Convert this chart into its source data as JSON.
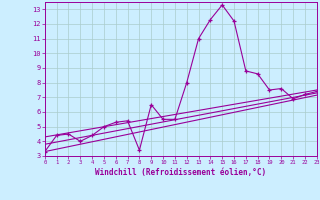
{
  "title": "",
  "xlabel": "Windchill (Refroidissement éolien,°C)",
  "background_color": "#cceeff",
  "grid_color": "#aacccc",
  "line_color": "#990099",
  "spine_color": "#990099",
  "x_ticks": [
    0,
    1,
    2,
    3,
    4,
    5,
    6,
    7,
    8,
    9,
    10,
    11,
    12,
    13,
    14,
    15,
    16,
    17,
    18,
    19,
    20,
    21,
    22,
    23
  ],
  "y_ticks": [
    3,
    4,
    5,
    6,
    7,
    8,
    9,
    10,
    11,
    12,
    13
  ],
  "ylim": [
    3,
    13.5
  ],
  "xlim": [
    0,
    23
  ],
  "series_main": [
    [
      0,
      3.3
    ],
    [
      1,
      4.4
    ],
    [
      2,
      4.5
    ],
    [
      3,
      4.0
    ],
    [
      4,
      4.4
    ],
    [
      5,
      5.0
    ],
    [
      6,
      5.3
    ],
    [
      7,
      5.4
    ],
    [
      8,
      3.4
    ],
    [
      9,
      6.5
    ],
    [
      10,
      5.5
    ],
    [
      11,
      5.5
    ],
    [
      12,
      8.0
    ],
    [
      13,
      11.0
    ],
    [
      14,
      12.3
    ],
    [
      15,
      13.3
    ],
    [
      16,
      12.2
    ],
    [
      17,
      8.8
    ],
    [
      18,
      8.6
    ],
    [
      19,
      7.5
    ],
    [
      20,
      7.6
    ],
    [
      21,
      6.9
    ],
    [
      22,
      7.2
    ],
    [
      23,
      7.4
    ]
  ],
  "series_linear1": [
    [
      0,
      3.3
    ],
    [
      23,
      7.15
    ]
  ],
  "series_linear2": [
    [
      0,
      3.8
    ],
    [
      23,
      7.3
    ]
  ],
  "series_linear3": [
    [
      0,
      4.3
    ],
    [
      23,
      7.5
    ]
  ]
}
